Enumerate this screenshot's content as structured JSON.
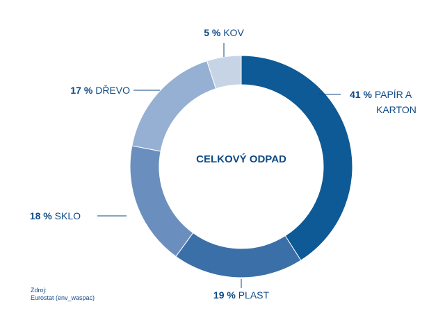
{
  "chart_data": {
    "type": "pie",
    "center_label": "CELKOVÝ ODPAD",
    "slices": [
      {
        "pct_label": "41 %",
        "label_lines": [
          "PAPÍR A",
          "KARTON"
        ],
        "value": 41,
        "color": "#0e5a96"
      },
      {
        "pct_label": "19 %",
        "label_lines": [
          "PLAST"
        ],
        "value": 19,
        "color": "#3b6fa7"
      },
      {
        "pct_label": "18 %",
        "label_lines": [
          "SKLO"
        ],
        "value": 18,
        "color": "#6a8fbf"
      },
      {
        "pct_label": "17 %",
        "label_lines": [
          "DŘEVO"
        ],
        "value": 17,
        "color": "#95b0d2"
      },
      {
        "pct_label": "5 %",
        "label_lines": [
          "KOV"
        ],
        "value": 5,
        "color": "#c6d4e6"
      }
    ]
  },
  "source": {
    "line1": "Zdroj:",
    "line2": "Eurostat (env_waspac)"
  },
  "colors": {
    "text": "#0e4a86"
  }
}
